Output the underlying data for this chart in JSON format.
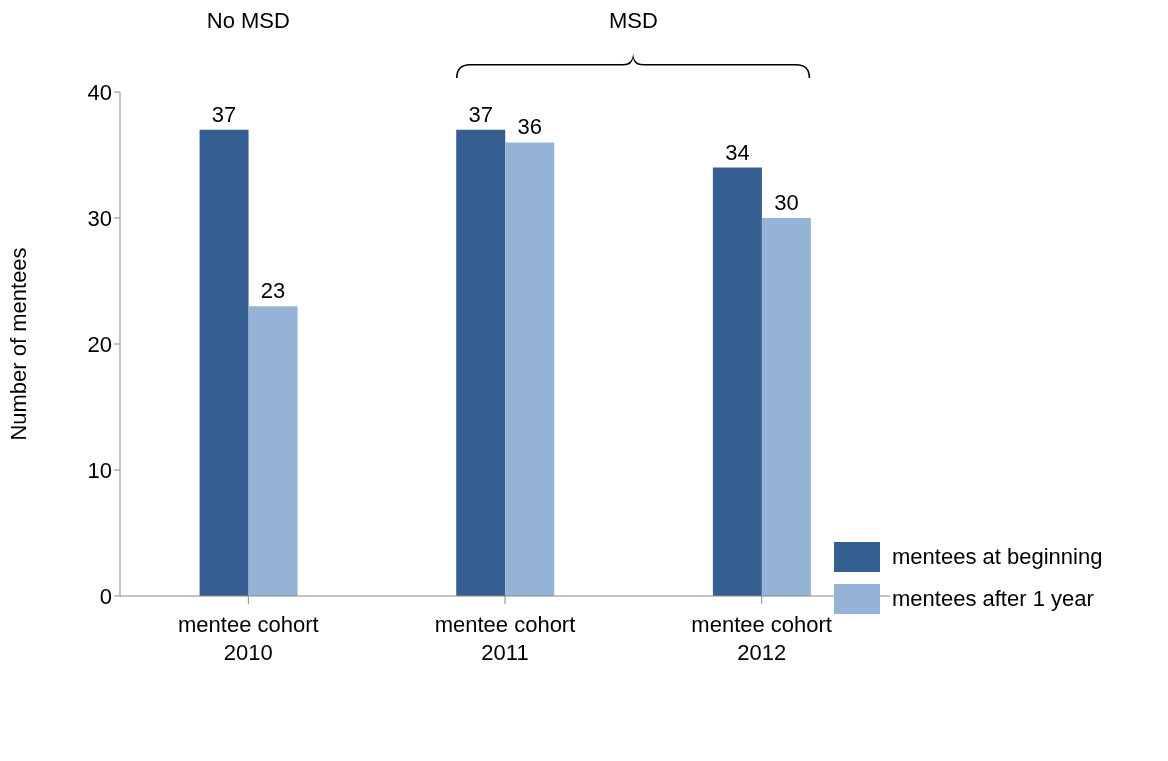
{
  "chart_data": {
    "type": "bar",
    "ylabel": "Number of mentees",
    "categories": [
      "mentee cohort 2010",
      "mentee cohort 2011",
      "mentee cohort 2012"
    ],
    "series": [
      {
        "name": "mentees at beginning",
        "color": "#365f91",
        "values": [
          37,
          37,
          34
        ]
      },
      {
        "name": "mentees after 1 year",
        "color": "#95b3d7",
        "values": [
          23,
          36,
          30
        ]
      }
    ],
    "ylim": [
      0,
      40
    ],
    "yticks": [
      0,
      10,
      20,
      30,
      40
    ],
    "grid": false,
    "legend": "right",
    "data_labels": true,
    "annotations": [
      "No MSD",
      "MSD"
    ]
  }
}
